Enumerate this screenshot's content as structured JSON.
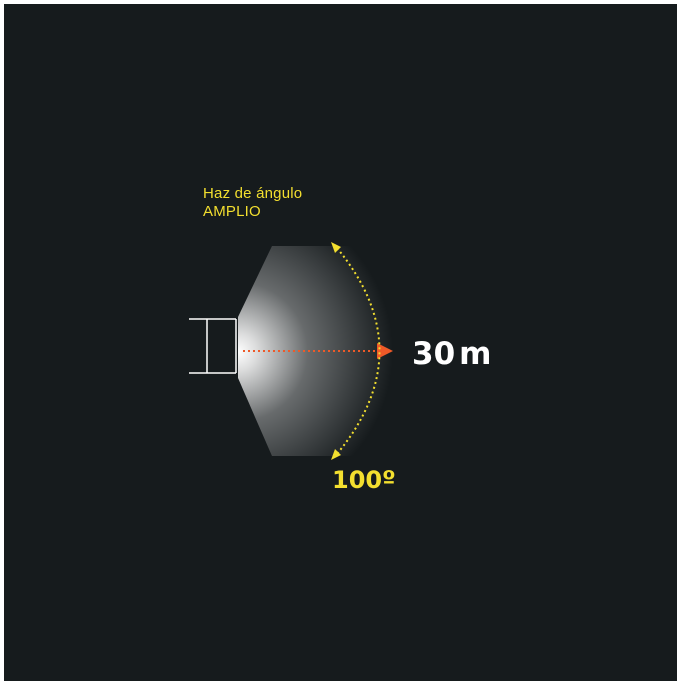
{
  "beam": {
    "title_line1": "Haz de ángulo",
    "title_line2": "AMPLIO"
  },
  "distance": {
    "value": "30",
    "unit": "m"
  },
  "angle": {
    "label": "100º"
  },
  "colors": {
    "background": "#161b1d",
    "label_yellow": "#f3df2f",
    "arrow_orange": "#ef5a28",
    "beam": "#ffffff",
    "device_outline": "#ffffff"
  },
  "icons": {
    "device": "floodlight-icon",
    "range_arrow": "arrow-right-icon",
    "angle_arc": "curved-double-arrow-icon"
  }
}
